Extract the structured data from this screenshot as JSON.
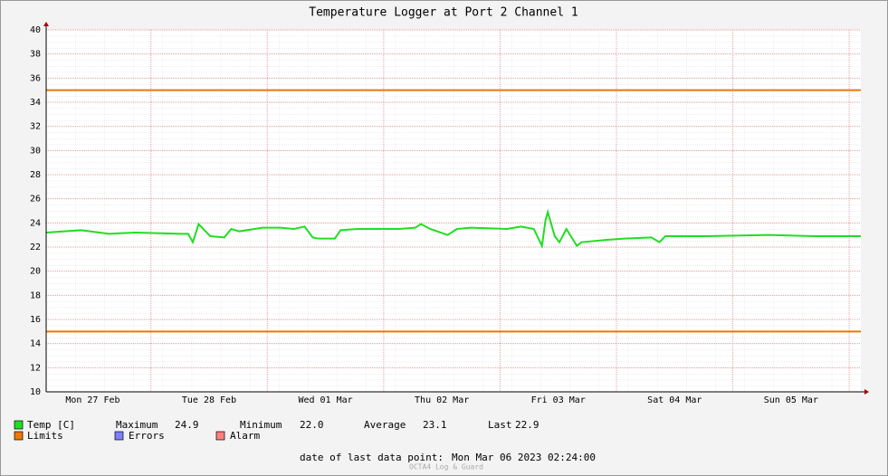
{
  "chart_data": {
    "type": "line",
    "title": "Temperature Logger at Port 2 Channel 1",
    "series": [
      {
        "name": "Temp [C]",
        "color": "#22dd22",
        "x": [
          0.1,
          0.4,
          0.64,
          0.87,
          1.26,
          1.32,
          1.36,
          1.41,
          1.51,
          1.63,
          1.69,
          1.76,
          1.96,
          2.11,
          2.23,
          2.32,
          2.39,
          2.44,
          2.58,
          2.63,
          2.78,
          3.13,
          3.27,
          3.32,
          3.4,
          3.55,
          3.63,
          3.75,
          4.06,
          4.18,
          4.29,
          4.36,
          4.39,
          4.41,
          4.47,
          4.51,
          4.57,
          4.66,
          4.7,
          4.92,
          5.07,
          5.3,
          5.37,
          5.42,
          5.77,
          6.31,
          6.7,
          7.1
        ],
        "values": [
          23.2,
          23.4,
          23.1,
          23.2,
          23.1,
          23.1,
          22.4,
          23.9,
          22.9,
          22.8,
          23.5,
          23.3,
          23.6,
          23.6,
          23.5,
          23.7,
          22.8,
          22.7,
          22.7,
          23.4,
          23.5,
          23.5,
          23.6,
          23.9,
          23.5,
          23.0,
          23.5,
          23.6,
          23.5,
          23.7,
          23.5,
          22.1,
          24.2,
          24.9,
          22.9,
          22.4,
          23.5,
          22.1,
          22.4,
          22.6,
          22.7,
          22.8,
          22.4,
          22.9,
          22.9,
          23.0,
          22.9,
          22.9
        ]
      }
    ],
    "limits": {
      "name": "Limits",
      "color": "#ee7700",
      "values": [
        35,
        15
      ]
    },
    "extra_legend": [
      {
        "name": "Errors",
        "color": "#7f7fff"
      },
      {
        "name": "Alarm",
        "color": "#ff7f7f"
      }
    ],
    "stats": [
      {
        "label": "Maximum",
        "value": "24.9"
      },
      {
        "label": "Minimum",
        "value": "22.0"
      },
      {
        "label": "Average",
        "value": "23.1"
      },
      {
        "label": "Last",
        "value": "22.9"
      }
    ],
    "xlim": [
      0.1,
      7.1
    ],
    "ylim": [
      10,
      40
    ],
    "xticks": [
      {
        "value": 0.5,
        "label": "Mon 27 Feb"
      },
      {
        "value": 1.5,
        "label": "Tue 28 Feb"
      },
      {
        "value": 2.5,
        "label": "Wed 01 Mar"
      },
      {
        "value": 3.5,
        "label": "Thu 02 Mar"
      },
      {
        "value": 4.5,
        "label": "Fri 03 Mar"
      },
      {
        "value": 5.5,
        "label": "Sat 04 Mar"
      },
      {
        "value": 6.5,
        "label": "Sun 05 Mar"
      }
    ],
    "xgrid": [
      1,
      2,
      3,
      4,
      5,
      6,
      7
    ],
    "yticks": [
      10,
      12,
      14,
      16,
      18,
      20,
      22,
      24,
      26,
      28,
      30,
      32,
      34,
      36,
      38,
      40
    ],
    "grid": true,
    "footer": {
      "label": "date of last data point:",
      "value": "Mon Mar 06 2023 02:24:00"
    },
    "watermark": "OCTA4 Log & Guard"
  }
}
